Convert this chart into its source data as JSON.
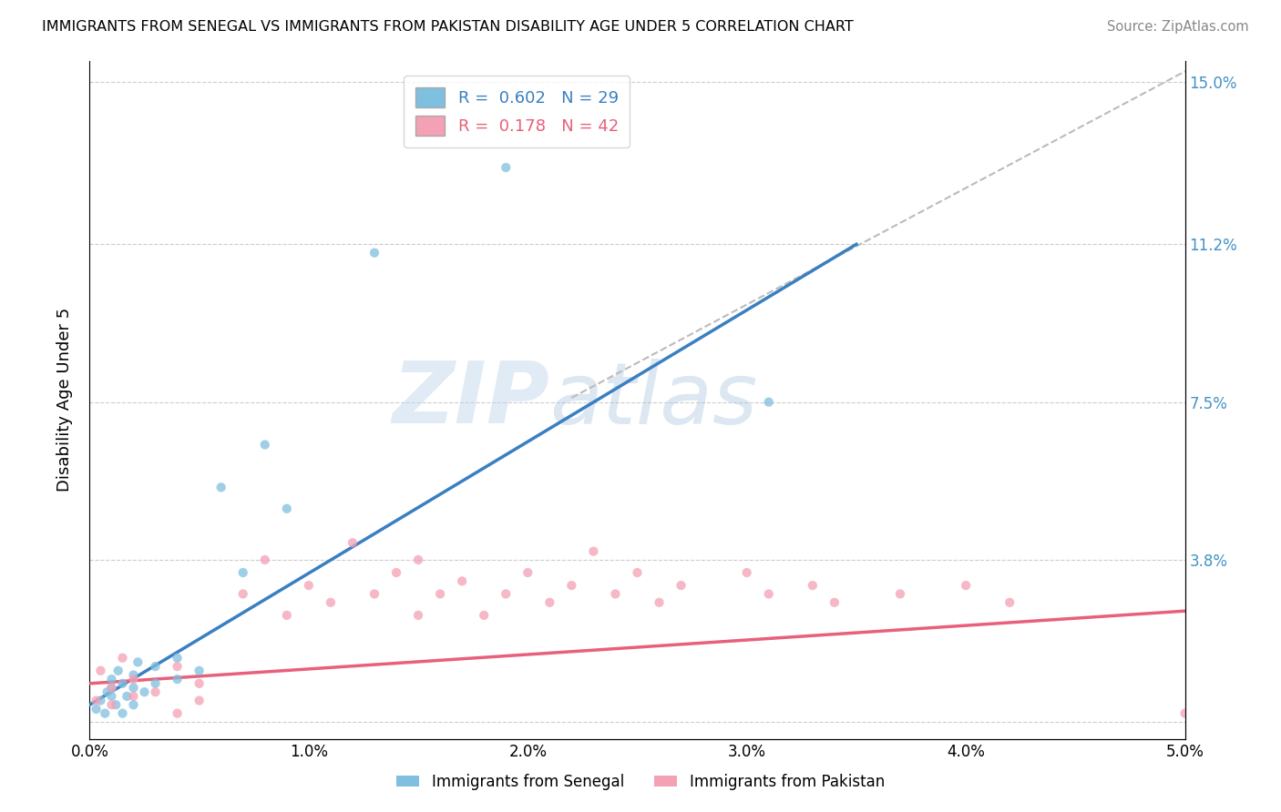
{
  "title": "IMMIGRANTS FROM SENEGAL VS IMMIGRANTS FROM PAKISTAN DISABILITY AGE UNDER 5 CORRELATION CHART",
  "source": "Source: ZipAtlas.com",
  "ylabel": "Disability Age Under 5",
  "r_senegal": 0.602,
  "n_senegal": 29,
  "r_pakistan": 0.178,
  "n_pakistan": 42,
  "xlim": [
    0.0,
    0.05
  ],
  "ylim": [
    -0.004,
    0.155
  ],
  "yticks": [
    0.0,
    0.038,
    0.075,
    0.112,
    0.15
  ],
  "ytick_labels": [
    "",
    "3.8%",
    "7.5%",
    "11.2%",
    "15.0%"
  ],
  "xticks": [
    0.0,
    0.01,
    0.02,
    0.03,
    0.04,
    0.05
  ],
  "xtick_labels": [
    "0.0%",
    "1.0%",
    "2.0%",
    "3.0%",
    "4.0%",
    "5.0%"
  ],
  "color_senegal": "#7fbfdf",
  "color_pakistan": "#f4a0b5",
  "color_line_senegal": "#3a7fc1",
  "color_line_pakistan": "#e8607a",
  "color_dashed": "#bbbbbb",
  "watermark": "ZIPatlas",
  "senegal_line_x": [
    0.0,
    0.035
  ],
  "senegal_line_y": [
    0.004,
    0.112
  ],
  "pakistan_line_x": [
    0.0,
    0.05
  ],
  "pakistan_line_y": [
    0.009,
    0.026
  ],
  "dashed_line_x": [
    0.022,
    0.052
  ],
  "dashed_line_y": [
    0.076,
    0.158
  ],
  "senegal_x": [
    0.0003,
    0.0005,
    0.0007,
    0.0008,
    0.001,
    0.001,
    0.001,
    0.0012,
    0.0013,
    0.0015,
    0.0015,
    0.0017,
    0.002,
    0.002,
    0.002,
    0.0022,
    0.0025,
    0.003,
    0.003,
    0.004,
    0.004,
    0.005,
    0.006,
    0.007,
    0.008,
    0.009,
    0.013,
    0.019,
    0.031
  ],
  "senegal_y": [
    0.003,
    0.005,
    0.002,
    0.007,
    0.008,
    0.006,
    0.01,
    0.004,
    0.012,
    0.009,
    0.002,
    0.006,
    0.008,
    0.011,
    0.004,
    0.014,
    0.007,
    0.009,
    0.013,
    0.01,
    0.015,
    0.012,
    0.055,
    0.035,
    0.065,
    0.05,
    0.11,
    0.13,
    0.075
  ],
  "pakistan_x": [
    0.0003,
    0.0005,
    0.001,
    0.001,
    0.0015,
    0.002,
    0.002,
    0.003,
    0.004,
    0.004,
    0.005,
    0.005,
    0.007,
    0.008,
    0.009,
    0.01,
    0.011,
    0.012,
    0.013,
    0.014,
    0.015,
    0.015,
    0.016,
    0.017,
    0.018,
    0.019,
    0.02,
    0.021,
    0.022,
    0.023,
    0.024,
    0.025,
    0.026,
    0.027,
    0.03,
    0.031,
    0.033,
    0.034,
    0.037,
    0.04,
    0.042,
    0.05
  ],
  "pakistan_y": [
    0.005,
    0.012,
    0.008,
    0.004,
    0.015,
    0.01,
    0.006,
    0.007,
    0.013,
    0.002,
    0.009,
    0.005,
    0.03,
    0.038,
    0.025,
    0.032,
    0.028,
    0.042,
    0.03,
    0.035,
    0.025,
    0.038,
    0.03,
    0.033,
    0.025,
    0.03,
    0.035,
    0.028,
    0.032,
    0.04,
    0.03,
    0.035,
    0.028,
    0.032,
    0.035,
    0.03,
    0.032,
    0.028,
    0.03,
    0.032,
    0.028,
    0.002
  ]
}
